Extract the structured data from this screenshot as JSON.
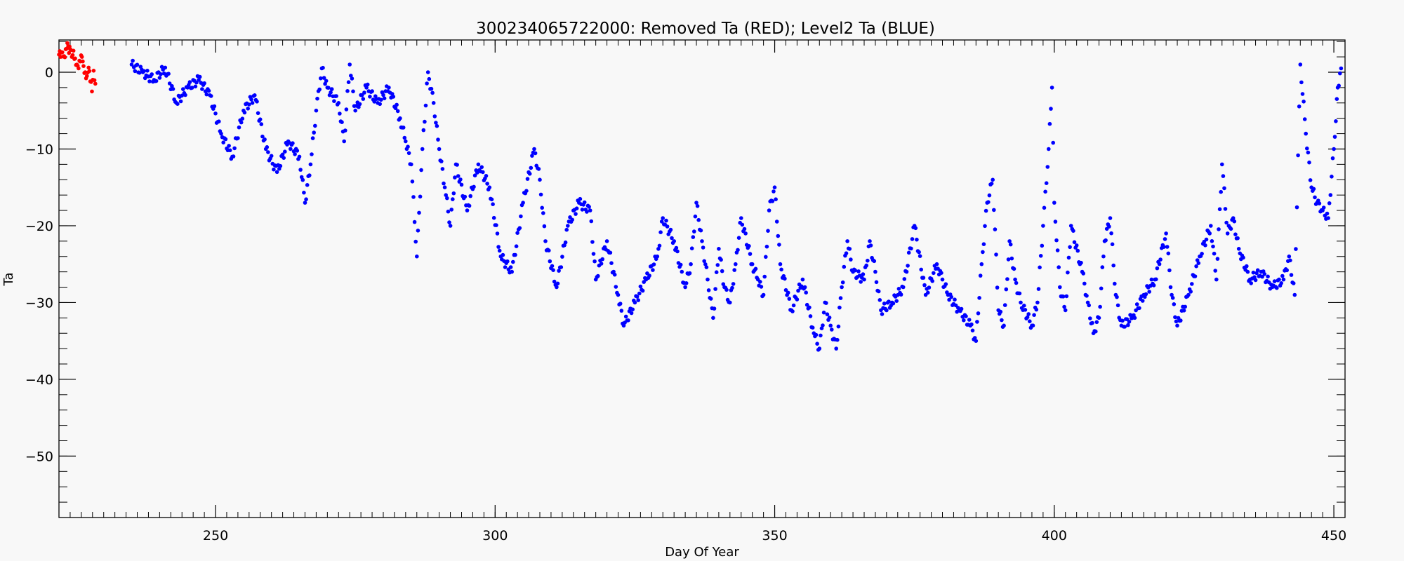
{
  "chart_data": {
    "type": "scatter",
    "title": "300234065722000: Removed Ta (RED); Level2 Ta (BLUE)",
    "xlabel": "Day Of Year",
    "ylabel": "Ta",
    "xlim": [
      222,
      452
    ],
    "ylim": [
      -58,
      4.2
    ],
    "xticks": [
      250,
      300,
      350,
      400,
      450
    ],
    "yticks": [
      0,
      -10,
      -20,
      -30,
      -40,
      -50
    ],
    "grid": false,
    "series": [
      {
        "color": "#ff0000",
        "points": [
          [
            222.0,
            2.3
          ],
          [
            222.3,
            2.0
          ],
          [
            222.6,
            2.6
          ],
          [
            222.9,
            2.1
          ],
          [
            223.2,
            3.0
          ],
          [
            223.5,
            3.8
          ],
          [
            223.8,
            2.5
          ],
          [
            224.0,
            3.0
          ],
          [
            224.3,
            2.0
          ],
          [
            224.6,
            2.8
          ],
          [
            224.9,
            1.8
          ],
          [
            225.2,
            1.0
          ],
          [
            225.5,
            0.5
          ],
          [
            225.8,
            1.4
          ],
          [
            226.1,
            2.0
          ],
          [
            226.4,
            0.8
          ],
          [
            226.7,
            0.0
          ],
          [
            227.0,
            -0.5
          ],
          [
            227.3,
            0.6
          ],
          [
            227.6,
            -1.2
          ],
          [
            227.9,
            -2.5
          ],
          [
            228.2,
            0.2
          ],
          [
            228.5,
            -1.5
          ]
        ]
      },
      {
        "color": "#0000ff",
        "points": [
          [
            235,
            1.0
          ],
          [
            237,
            0.0
          ],
          [
            239,
            -1.0
          ],
          [
            241,
            0.6
          ],
          [
            243,
            -4.0
          ],
          [
            245,
            -2.0
          ],
          [
            247,
            -1.0
          ],
          [
            249,
            -3.0
          ],
          [
            251,
            -8.0
          ],
          [
            253,
            -11.0
          ],
          [
            255,
            -5.0
          ],
          [
            257,
            -3.0
          ],
          [
            259,
            -10.0
          ],
          [
            261,
            -13.0
          ],
          [
            263,
            -9.0
          ],
          [
            265,
            -11.0
          ],
          [
            266,
            -17.0
          ],
          [
            267,
            -12.0
          ],
          [
            268,
            -5.0
          ],
          [
            269,
            0.5
          ],
          [
            270,
            -2.0
          ],
          [
            272,
            -4.0
          ],
          [
            273,
            -9.0
          ],
          [
            274,
            1.0
          ],
          [
            275,
            -5.0
          ],
          [
            277,
            -2.0
          ],
          [
            279,
            -4.0
          ],
          [
            281,
            -2.0
          ],
          [
            283,
            -6.0
          ],
          [
            284,
            -9.0
          ],
          [
            285,
            -12.0
          ],
          [
            286,
            -24.0
          ],
          [
            287,
            -10.0
          ],
          [
            288,
            0.0
          ],
          [
            289,
            -4.0
          ],
          [
            290,
            -10.0
          ],
          [
            291,
            -15.0
          ],
          [
            292,
            -20.0
          ],
          [
            293,
            -12.0
          ],
          [
            295,
            -18.0
          ],
          [
            297,
            -12.0
          ],
          [
            299,
            -15.0
          ],
          [
            301,
            -24.0
          ],
          [
            303,
            -26.0
          ],
          [
            305,
            -17.0
          ],
          [
            307,
            -10.0
          ],
          [
            308,
            -14.0
          ],
          [
            309,
            -22.0
          ],
          [
            311,
            -28.0
          ],
          [
            313,
            -20.0
          ],
          [
            315,
            -17.0
          ],
          [
            317,
            -18.0
          ],
          [
            318,
            -27.0
          ],
          [
            320,
            -22.0
          ],
          [
            322,
            -29.0
          ],
          [
            323,
            -33.0
          ],
          [
            325,
            -30.0
          ],
          [
            327,
            -27.0
          ],
          [
            329,
            -24.0
          ],
          [
            330,
            -19.0
          ],
          [
            332,
            -22.0
          ],
          [
            334,
            -28.0
          ],
          [
            335,
            -25.0
          ],
          [
            336,
            -17.0
          ],
          [
            337,
            -22.0
          ],
          [
            338,
            -27.0
          ],
          [
            339,
            -32.0
          ],
          [
            340,
            -23.0
          ],
          [
            341,
            -28.0
          ],
          [
            342,
            -30.0
          ],
          [
            343,
            -25.0
          ],
          [
            344,
            -19.0
          ],
          [
            346,
            -25.0
          ],
          [
            347,
            -27.0
          ],
          [
            348,
            -29.0
          ],
          [
            349,
            -18.0
          ],
          [
            350,
            -15.0
          ],
          [
            351,
            -25.0
          ],
          [
            353,
            -31.0
          ],
          [
            355,
            -27.0
          ],
          [
            357,
            -34.0
          ],
          [
            358,
            -36.0
          ],
          [
            359,
            -30.0
          ],
          [
            360,
            -33.0
          ],
          [
            361,
            -36.0
          ],
          [
            362,
            -28.0
          ],
          [
            363,
            -22.0
          ],
          [
            364,
            -26.0
          ],
          [
            366,
            -27.0
          ],
          [
            367,
            -22.0
          ],
          [
            368,
            -26.0
          ],
          [
            369,
            -31.0
          ],
          [
            371,
            -30.0
          ],
          [
            373,
            -28.0
          ],
          [
            375,
            -20.0
          ],
          [
            377,
            -29.0
          ],
          [
            379,
            -25.0
          ],
          [
            380,
            -27.0
          ],
          [
            381,
            -29.0
          ],
          [
            383,
            -31.0
          ],
          [
            385,
            -33.0
          ],
          [
            386,
            -35.0
          ],
          [
            387,
            -25.0
          ],
          [
            388,
            -17.0
          ],
          [
            389,
            -14.0
          ],
          [
            390,
            -31.0
          ],
          [
            391,
            -33.0
          ],
          [
            392,
            -22.0
          ],
          [
            393,
            -27.0
          ],
          [
            394,
            -30.0
          ],
          [
            396,
            -33.0
          ],
          [
            397,
            -30.0
          ],
          [
            398,
            -20.0
          ],
          [
            399,
            -10.0
          ],
          [
            399.6,
            -2.0
          ],
          [
            400,
            -17.0
          ],
          [
            401,
            -28.0
          ],
          [
            402,
            -31.0
          ],
          [
            403,
            -20.0
          ],
          [
            405,
            -26.0
          ],
          [
            406,
            -30.0
          ],
          [
            407,
            -34.0
          ],
          [
            408,
            -32.0
          ],
          [
            409,
            -22.0
          ],
          [
            410,
            -19.0
          ],
          [
            411,
            -29.0
          ],
          [
            412,
            -33.0
          ],
          [
            414,
            -32.0
          ],
          [
            416,
            -29.0
          ],
          [
            418,
            -27.0
          ],
          [
            420,
            -21.0
          ],
          [
            421,
            -29.0
          ],
          [
            422,
            -33.0
          ],
          [
            424,
            -29.0
          ],
          [
            426,
            -24.0
          ],
          [
            428,
            -20.0
          ],
          [
            429,
            -27.0
          ],
          [
            430,
            -12.0
          ],
          [
            431,
            -21.0
          ],
          [
            432,
            -19.0
          ],
          [
            433,
            -23.0
          ],
          [
            435,
            -27.0
          ],
          [
            437,
            -26.0
          ],
          [
            439,
            -28.0
          ],
          [
            441,
            -27.0
          ],
          [
            442,
            -24.0
          ],
          [
            443,
            -29.0
          ],
          [
            444,
            1.0
          ],
          [
            445,
            -8.0
          ],
          [
            446,
            -15.0
          ],
          [
            447,
            -17.0
          ],
          [
            448,
            -18.0
          ],
          [
            449,
            -19.0
          ],
          [
            450,
            -10.0
          ],
          [
            450.7,
            -2.0
          ],
          [
            451.3,
            0.5
          ]
        ]
      }
    ]
  }
}
